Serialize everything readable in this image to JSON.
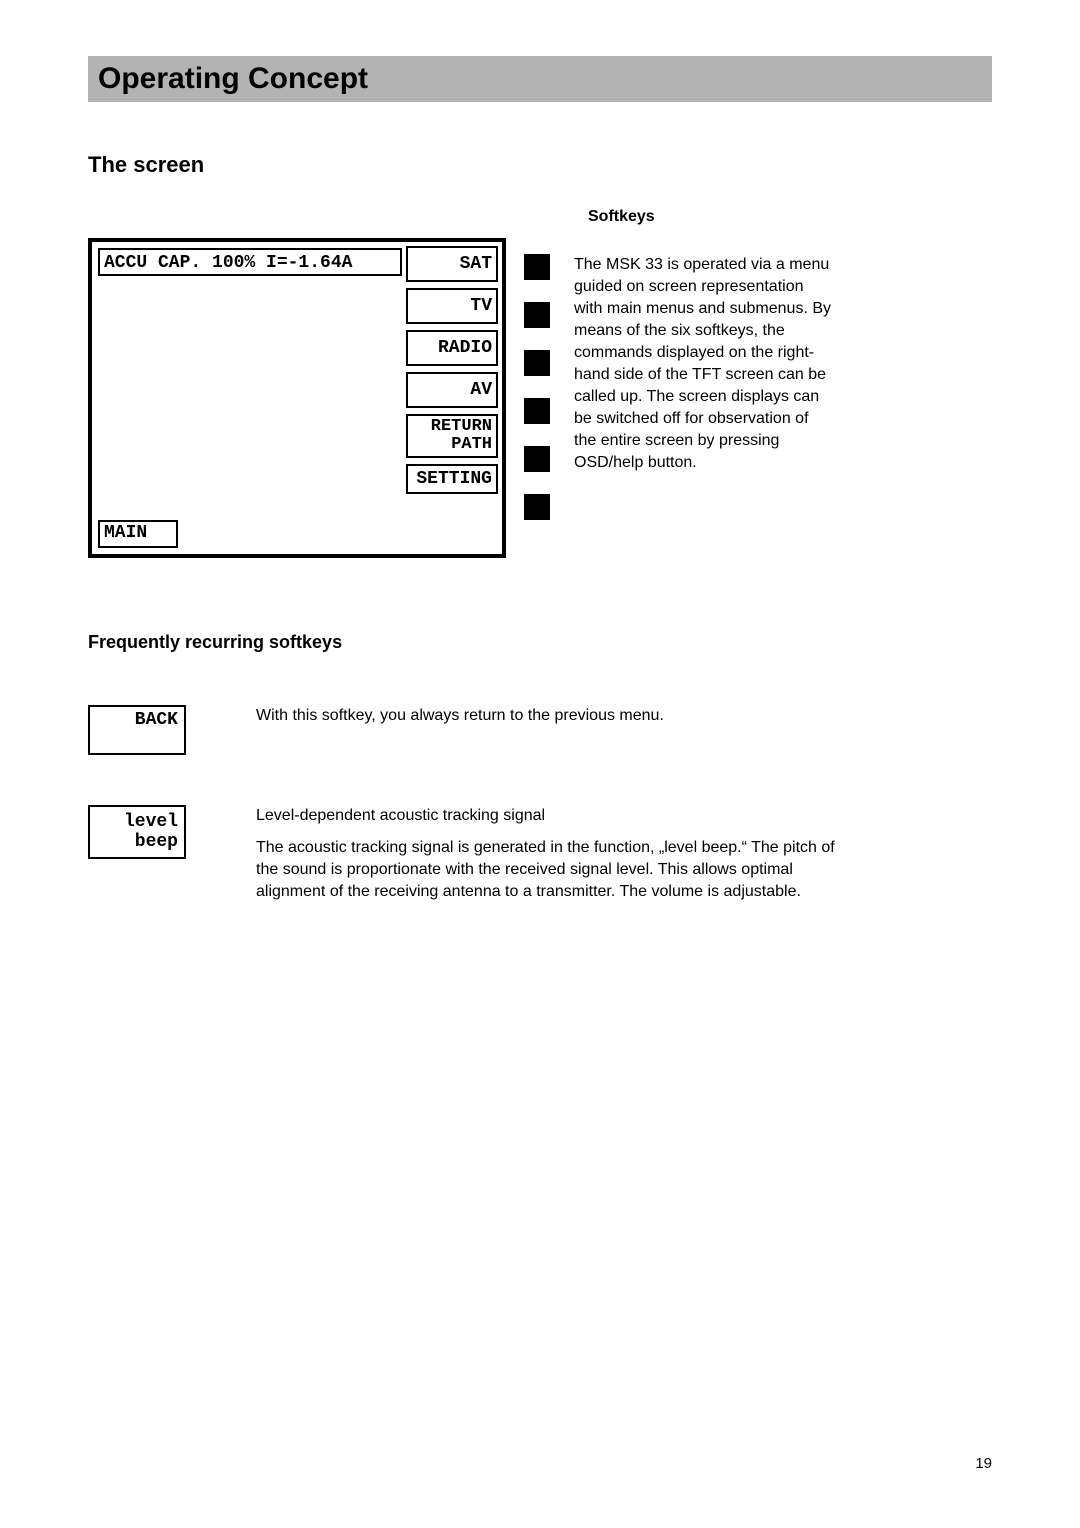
{
  "title": "Operating Concept",
  "section_heading": "The screen",
  "softkeys_label": "Softkeys",
  "tft": {
    "status": "ACCU CAP. 100% I=-1.64A",
    "main_label": "MAIN",
    "softkeys": {
      "sat": "SAT",
      "tv": "TV",
      "radio": "RADIO",
      "av": "AV",
      "return_line1": "RETURN",
      "return_line2": "PATH",
      "setting": "SETTING"
    }
  },
  "screen_paragraph": "The MSK 33 is operated via a menu guided on screen representation with main menus and submenus.  By means of the six softkeys, the commands displayed on the right-hand side of the TFT screen can be called up. The screen displays can be switched off for observation of the entire screen by pressing OSD/help button.",
  "sub_heading": "Frequently recurring softkeys",
  "back": {
    "label": "BACK",
    "desc": "With this softkey, you always return to the previous menu."
  },
  "level_beep": {
    "line1": "level",
    "line2": "beep",
    "heading": "Level-dependent acoustic tracking signal",
    "desc": "The acoustic tracking signal is generated in the function, „level beep.“ The pitch of the sound is proportionate with the received signal level.  This allows optimal alignment of the receiving antenna to a transmitter. The volume is adjustable."
  },
  "page_number": "19"
}
